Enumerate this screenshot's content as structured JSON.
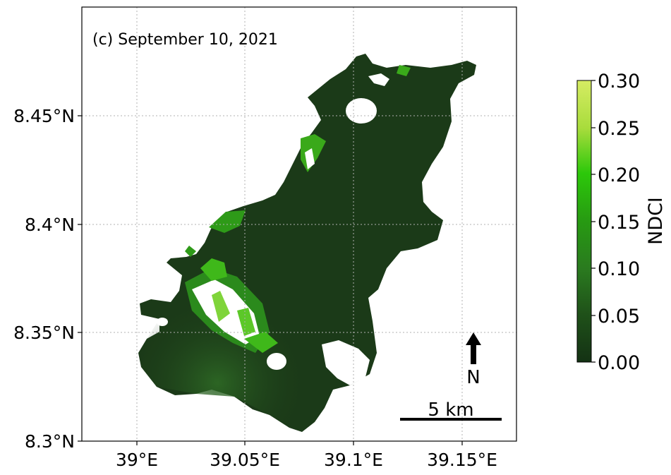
{
  "panel_label": "(c) September 10, 2021",
  "axes": {
    "x_ticks": [
      "39°E",
      "39.05°E",
      "39.1°E",
      "39.15°E"
    ],
    "y_ticks": [
      "8.45°N",
      "8.4°N",
      "8.35°N",
      "8.3°N"
    ],
    "x_range_deg": [
      38.975,
      39.175
    ],
    "y_range_deg": [
      8.3,
      8.5
    ],
    "grid": "on, dotted"
  },
  "colorbar": {
    "label": "NDCI",
    "ticks": [
      "0.00",
      "0.05",
      "0.10",
      "0.15",
      "0.20",
      "0.25",
      "0.30"
    ],
    "range": [
      0.0,
      0.3
    ],
    "colors": [
      "#143214",
      "#1f5119",
      "#2a7a1f",
      "#279a12",
      "#2cc80a",
      "#a8dc3c",
      "#d6ec63"
    ]
  },
  "scale_bar": {
    "label": "5 km"
  },
  "north_arrow": {
    "label": "N"
  },
  "water_color": "#1b3a18"
}
